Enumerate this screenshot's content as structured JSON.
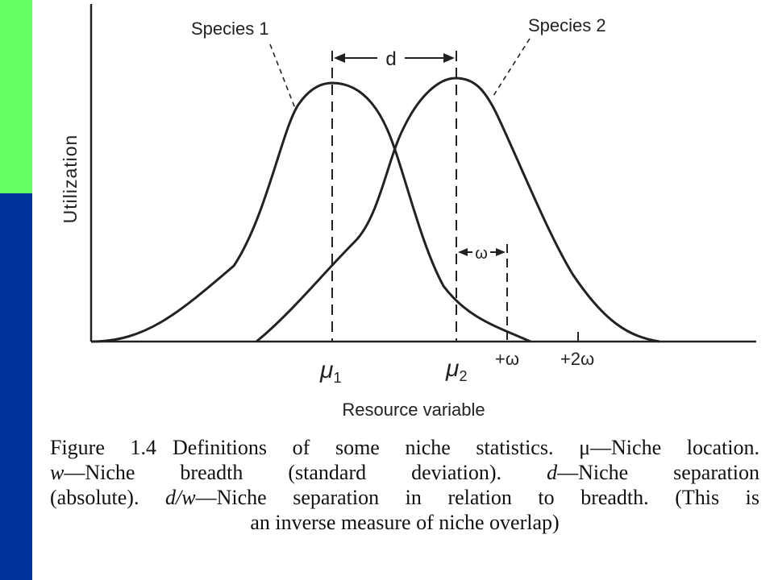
{
  "colors": {
    "left_bar_top": "#66ff66",
    "left_bar_bottom": "#003399",
    "ink": "#222222"
  },
  "diagram": {
    "y_axis_label": "Utilization",
    "x_axis_label": "Resource variable",
    "species_labels": [
      "Species 1",
      "Species 2"
    ],
    "separation_label": "d",
    "breadth_label": "ω",
    "tick_labels": {
      "mu": "μ",
      "sub1": "1",
      "sub2": "2",
      "plus_w": "+ω",
      "plus_2w": "+2ω"
    }
  },
  "caption": {
    "figure_label": "Figure 1.4",
    "line1_text": "Definitions of some niche statistics. μ—Niche location.",
    "line2_sym1": "w",
    "line2_text1": "—Niche breadth (standard deviation).",
    "line2_sym2": "d",
    "line2_text2": "—Niche separation",
    "line3_text1": "(absolute).",
    "line3_sym": "d/w",
    "line3_text2": "—Niche separation in relation to breadth. (This is",
    "line4_text": "an inverse measure of niche overlap)"
  }
}
